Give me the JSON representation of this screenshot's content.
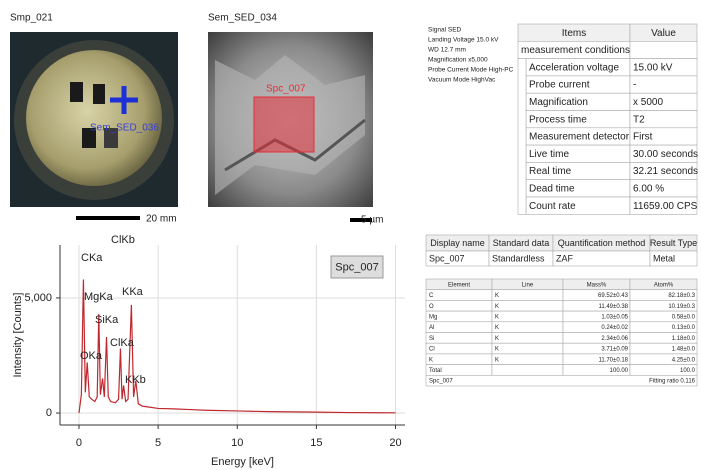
{
  "images": [
    {
      "title": "Smp_021",
      "overlay_label": "Sem_SED_036",
      "scale": "20 mm"
    },
    {
      "title": "Sem_SED_034",
      "overlay_label": "Spc_007",
      "scale": "5 µm"
    }
  ],
  "info": [
    "Signal SED",
    "Landing Voltage 15.0 kV",
    "WD 12.7 mm",
    "Magnification x5,000",
    "Probe Current Mode High-PC",
    "Vacuum Mode HighVac"
  ],
  "conditions": {
    "header": [
      "Items",
      "Value"
    ],
    "section": "measurement conditions",
    "rows": [
      [
        "Acceleration voltage",
        "15.00 kV"
      ],
      [
        "Probe current",
        "-"
      ],
      [
        "Magnification",
        "x 5000"
      ],
      [
        "Process time",
        "T2"
      ],
      [
        "Measurement detector",
        "First"
      ],
      [
        "Live time",
        "30.00 seconds"
      ],
      [
        "Real time",
        "32.21 seconds"
      ],
      [
        "Dead time",
        "6.00 %"
      ],
      [
        "Count rate",
        "11659.00 CPS"
      ]
    ]
  },
  "summary": {
    "header": [
      "Display name",
      "Standard data",
      "Quantification method",
      "Result Type"
    ],
    "row": [
      "Spc_007",
      "Standardless",
      "ZAF",
      "Metal"
    ]
  },
  "composition": {
    "header": [
      "Element",
      "Line",
      "Mass%",
      "Atom%"
    ],
    "rows": [
      [
        "C",
        "K",
        "69.52±0.43",
        "82.18±0.3"
      ],
      [
        "O",
        "K",
        "11.49±0.38",
        "10.19±0.3"
      ],
      [
        "Mg",
        "K",
        "1.03±0.05",
        "0.58±0.0"
      ],
      [
        "Al",
        "K",
        "0.24±0.02",
        "0.13±0.0"
      ],
      [
        "Si",
        "K",
        "2.34±0.06",
        "1.18±0.0"
      ],
      [
        "Cl",
        "K",
        "3.71±0.09",
        "1.48±0.0"
      ],
      [
        "K",
        "K",
        "11.70±0.18",
        "4.25±0.0"
      ]
    ],
    "total": [
      "Total",
      "100.00",
      "100.0"
    ],
    "footer": [
      "Spc_007",
      "Fitting ratio 0.116"
    ]
  },
  "chart_data": {
    "type": "line",
    "xlabel": "Energy [keV]",
    "ylabel": "Intensity [Counts]",
    "x": [
      0,
      0.15,
      0.28,
      0.4,
      0.52,
      0.65,
      0.8,
      1.0,
      1.15,
      1.25,
      1.35,
      1.49,
      1.6,
      1.74,
      1.85,
      2.0,
      2.3,
      2.5,
      2.62,
      2.72,
      2.82,
      2.95,
      3.1,
      3.31,
      3.45,
      3.59,
      3.75,
      4.0,
      4.5,
      5,
      6,
      7,
      8,
      10,
      12,
      15,
      17,
      20
    ],
    "series": [
      {
        "name": "Spc_007",
        "color": "#c0282e",
        "values": [
          0,
          800,
          5800,
          900,
          2200,
          700,
          600,
          500,
          700,
          4300,
          800,
          1500,
          700,
          3300,
          700,
          500,
          450,
          600,
          2800,
          600,
          1200,
          500,
          600,
          4700,
          700,
          1400,
          400,
          300,
          250,
          200,
          180,
          150,
          120,
          90,
          60,
          40,
          20,
          10
        ]
      }
    ],
    "xlim": [
      -1.2,
      20.6
    ],
    "ylim": [
      -520,
      7300
    ],
    "xticks": [
      0,
      5,
      10,
      15,
      20
    ],
    "yticks": [
      0,
      {
        "value": 5000,
        "label": "5,000"
      }
    ],
    "grid": true,
    "annotations": [
      "CKa",
      "MgKa",
      "SiKa",
      "OKa",
      "ClKb",
      "KKa",
      "ClKa",
      "KKb"
    ]
  }
}
